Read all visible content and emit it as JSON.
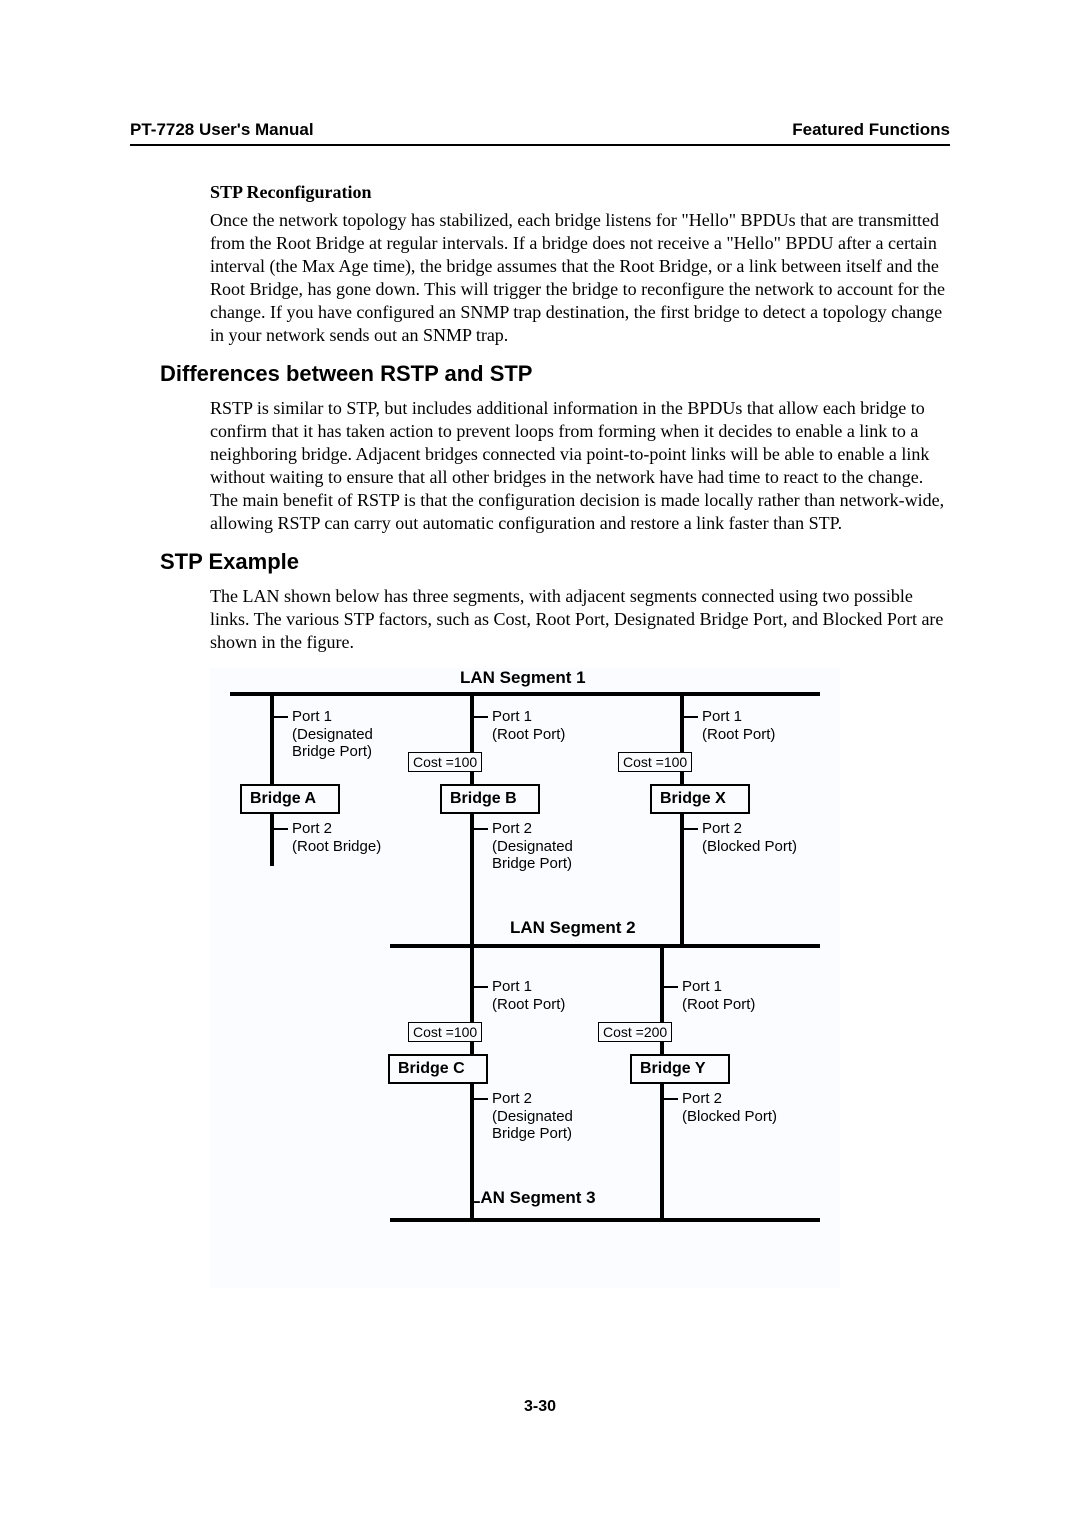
{
  "header": {
    "left": "PT-7728 User's Manual",
    "right": "Featured Functions"
  },
  "stp_reconfig": {
    "heading": "STP Reconfiguration",
    "body": "Once the network topology has stabilized, each bridge listens for \"Hello\" BPDUs that are transmitted from the Root Bridge at regular intervals. If a bridge does not receive a \"Hello\" BPDU after a certain interval (the Max Age time), the bridge assumes that the Root Bridge, or a link between itself and the Root Bridge, has gone down. This will trigger the bridge to reconfigure the network to account for the change. If you have configured an SNMP trap destination, the first bridge to detect a topology change in your network sends out an SNMP trap."
  },
  "diff_section": {
    "heading": "Differences between RSTP and STP",
    "body": "RSTP is similar to STP, but includes additional information in the BPDUs that allow each bridge to confirm that it has taken action to prevent loops from forming when it decides to enable a link to a neighboring bridge. Adjacent bridges connected via point-to-point links will be able to enable a link without waiting to ensure that all other bridges in the network have had time to react to the change. The main benefit of RSTP is that the configuration decision is made locally rather than network-wide, allowing RSTP can carry out automatic configuration and restore a link faster than STP."
  },
  "example_section": {
    "heading": "STP Example",
    "body": "The LAN shown below has three segments, with adjacent segments connected using two possible links. The various STP factors, such as Cost, Root Port, Designated Bridge Port, and Blocked Port are shown in the figure."
  },
  "diagram": {
    "seg1": "LAN Segment 1",
    "seg2": "LAN Segment 2",
    "seg3": "LAN Segment 3",
    "bridgeA": "Bridge A",
    "bridgeB": "Bridge B",
    "bridgeX": "Bridge X",
    "bridgeC": "Bridge C",
    "bridgeY": "Bridge Y",
    "a_p1": "Port 1\n(Designated\nBridge Port)",
    "a_p2": "Port 2\n(Root Bridge)",
    "b_p1": "Port 1\n(Root Port)",
    "b_p2": "Port 2\n(Designated\nBridge Port)",
    "x_p1": "Port 1\n(Root Port)",
    "x_p2": "Port 2\n(Blocked Port)",
    "c_p1": "Port 1\n(Root Port)",
    "c_p2": "Port 2\n(Designated\nBridge Port)",
    "y_p1": "Port 1\n(Root Port)",
    "y_p2": "Port 2\n(Blocked Port)",
    "cost_b": "Cost =100",
    "cost_x": "Cost =100",
    "cost_c": "Cost =100",
    "cost_y": "Cost =200"
  },
  "page_number": "3-30"
}
